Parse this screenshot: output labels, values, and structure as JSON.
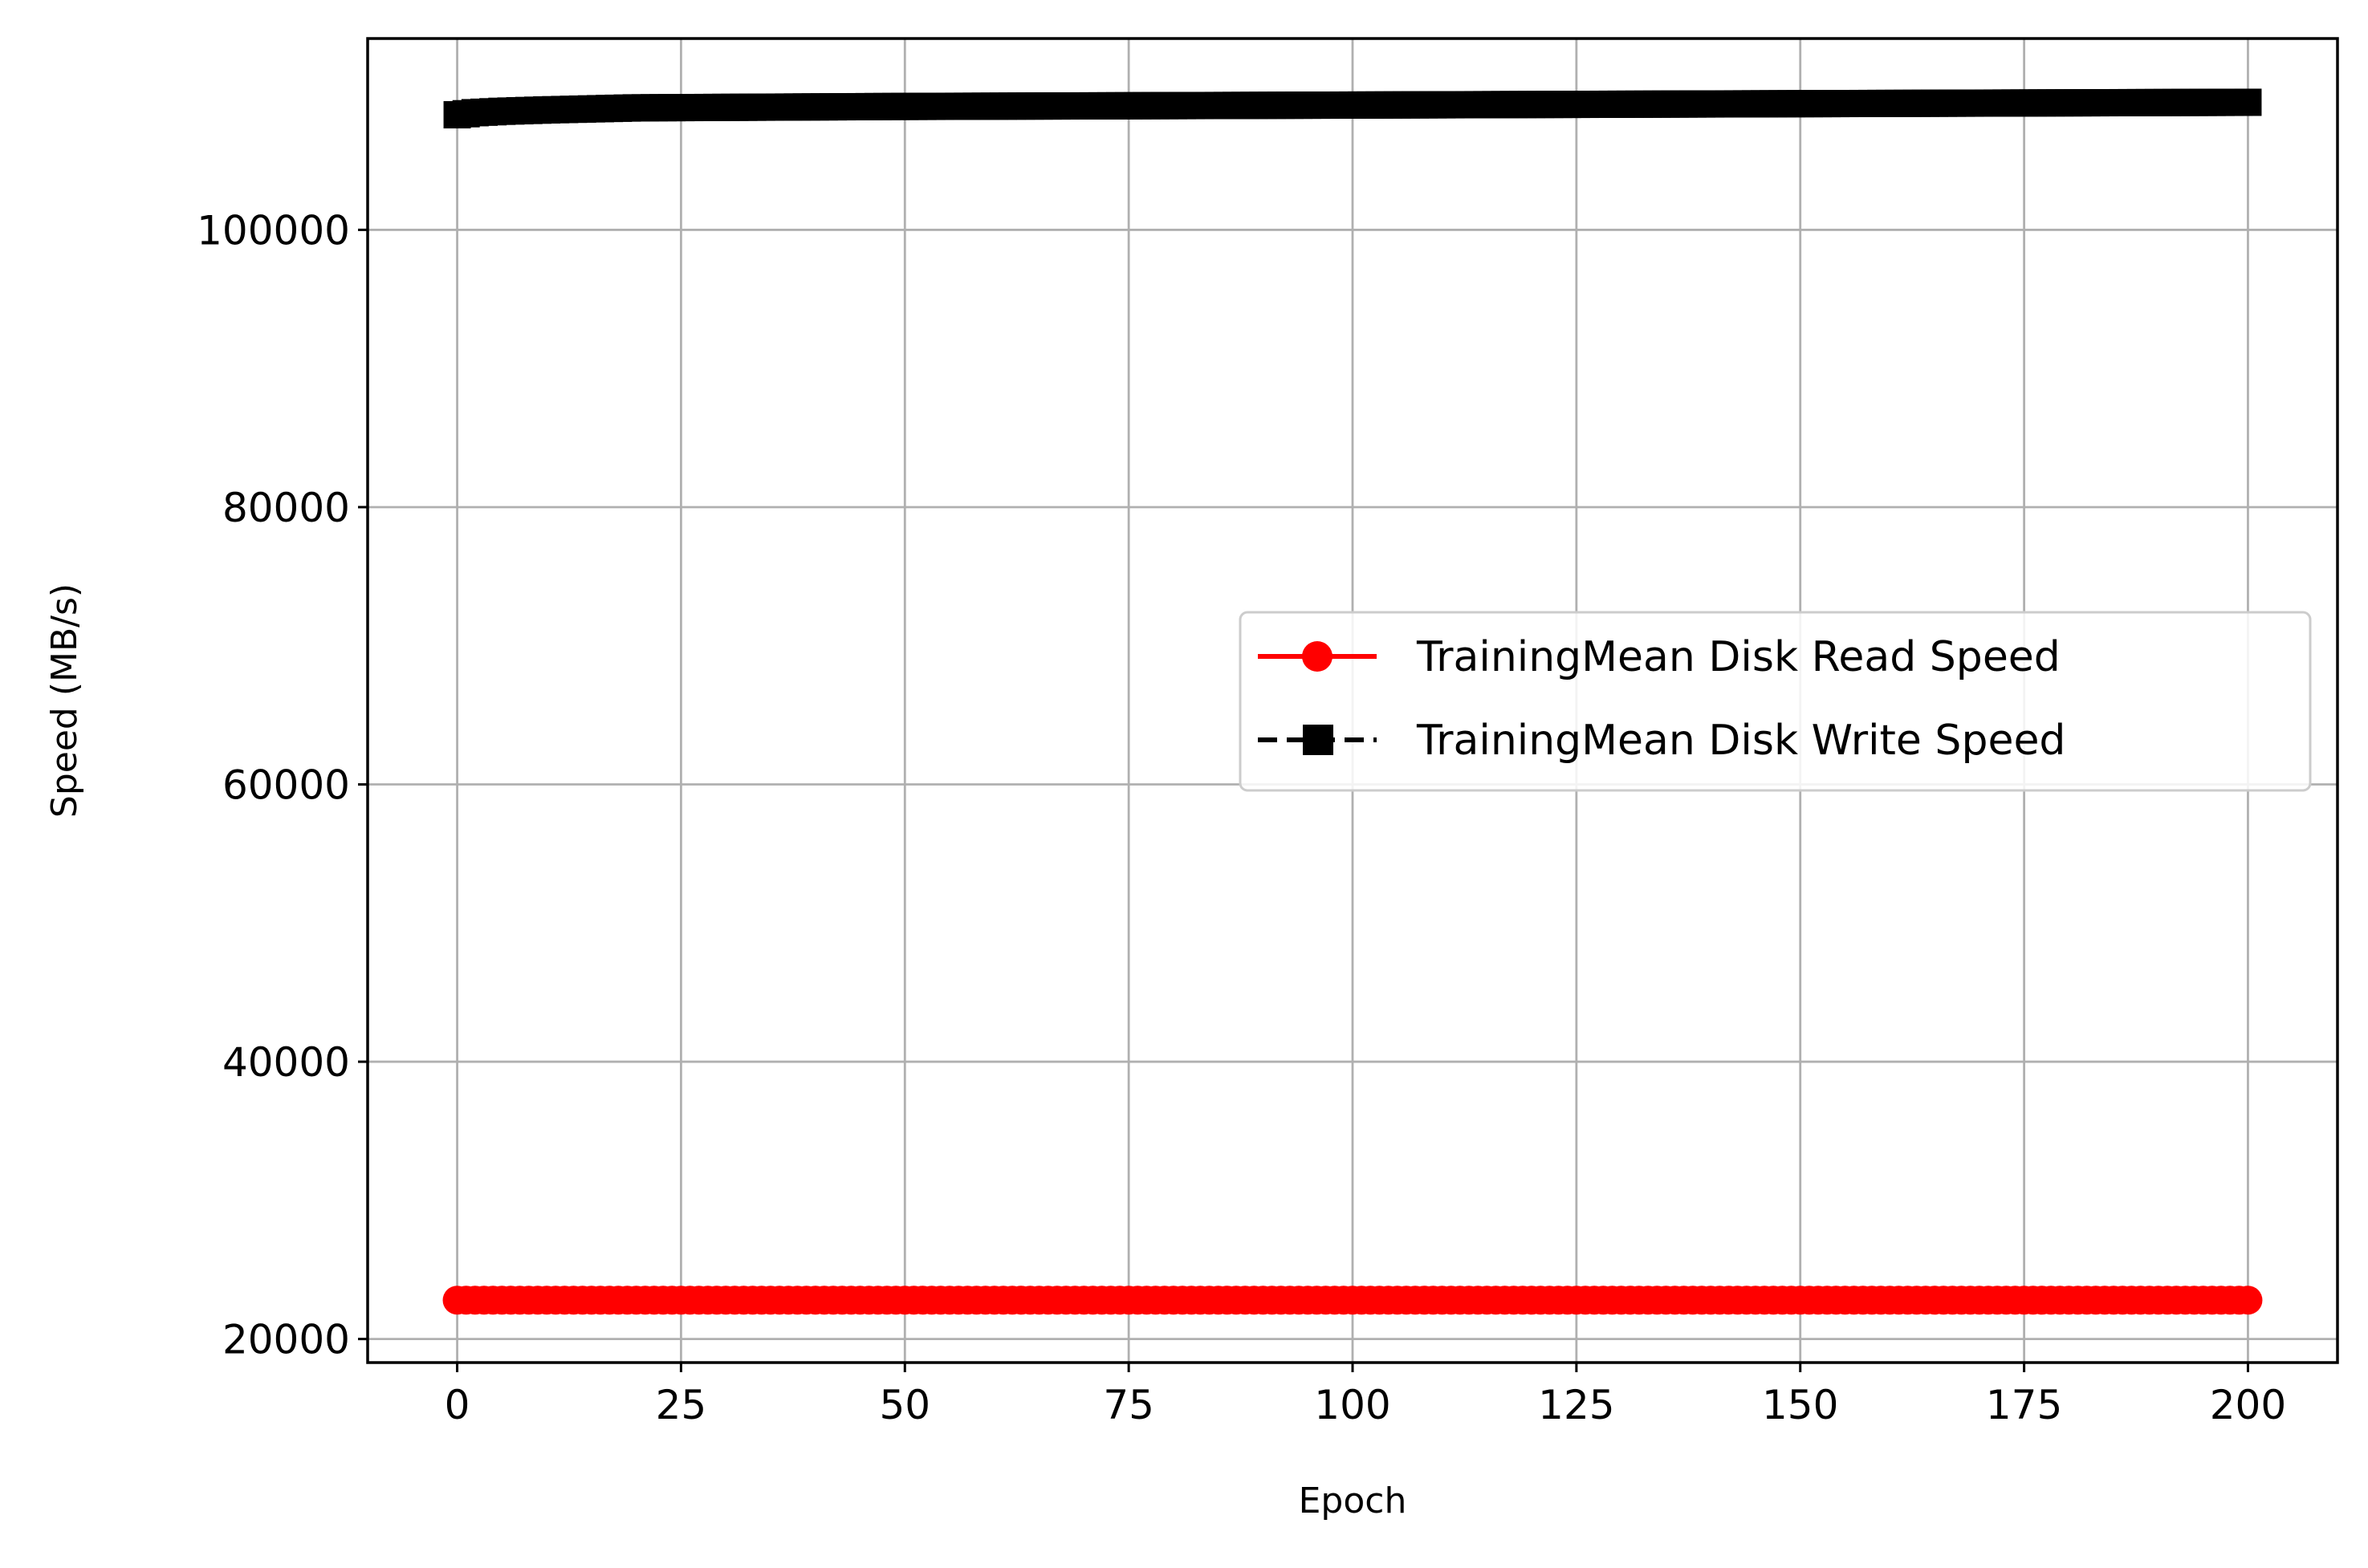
{
  "chart_data": {
    "type": "line",
    "title": "",
    "xlabel": "Epoch",
    "ylabel": "Speed (MB/s)",
    "xlim": [
      -10,
      210
    ],
    "ylim": [
      18300,
      113800
    ],
    "xticks": [
      0,
      25,
      50,
      75,
      100,
      125,
      150,
      175,
      200
    ],
    "yticks": [
      20000,
      40000,
      60000,
      80000,
      100000
    ],
    "grid": true,
    "legend_position": "center-right",
    "series": [
      {
        "name": "TrainingMean Disk Read Speed",
        "color": "#ff0000",
        "linestyle": "solid",
        "marker": "circle",
        "x_start": 0,
        "x_end": 200,
        "x_step": 1,
        "points": [
          [
            0,
            22800
          ],
          [
            200,
            22800
          ]
        ]
      },
      {
        "name": "TrainingMean Disk Write Speed",
        "color": "#000000",
        "linestyle": "dashed",
        "marker": "square",
        "x_start": 0,
        "x_end": 200,
        "x_step": 1,
        "points": [
          [
            0,
            108300
          ],
          [
            2,
            108450
          ],
          [
            5,
            108550
          ],
          [
            10,
            108650
          ],
          [
            20,
            108800
          ],
          [
            50,
            108900
          ],
          [
            100,
            109000
          ],
          [
            150,
            109100
          ],
          [
            200,
            109200
          ]
        ]
      }
    ]
  }
}
